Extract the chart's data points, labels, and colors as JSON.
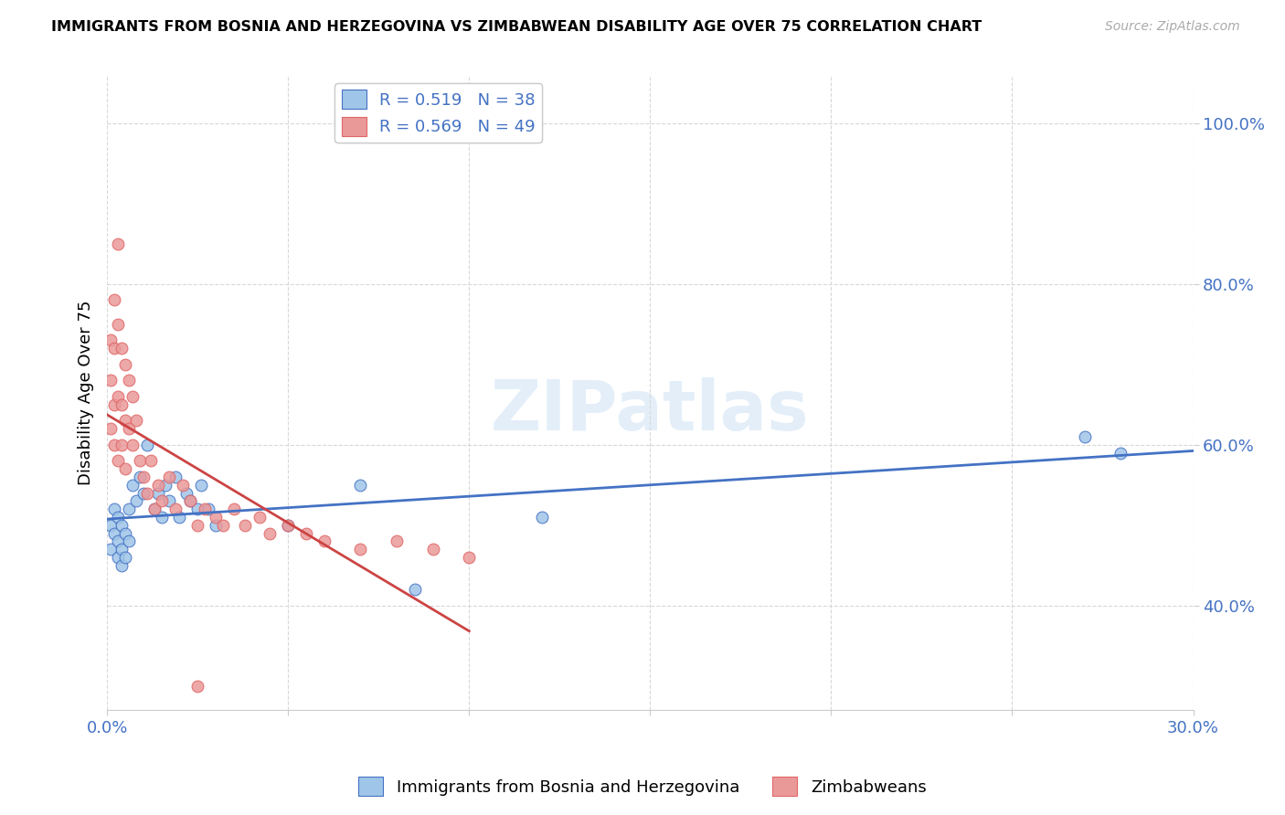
{
  "title": "IMMIGRANTS FROM BOSNIA AND HERZEGOVINA VS ZIMBABWEAN DISABILITY AGE OVER 75 CORRELATION CHART",
  "source": "Source: ZipAtlas.com",
  "ylabel": "Disability Age Over 75",
  "yticks": [
    0.4,
    0.6,
    0.8,
    1.0
  ],
  "ytick_labels": [
    "40.0%",
    "60.0%",
    "80.0%",
    "100.0%"
  ],
  "xtick_labels": [
    "0.0%",
    "",
    "",
    "",
    "",
    "",
    "30.0%"
  ],
  "xticks": [
    0.0,
    0.05,
    0.1,
    0.15,
    0.2,
    0.25,
    0.3
  ],
  "legend_label1": "Immigrants from Bosnia and Herzegovina",
  "legend_label2": "Zimbabweans",
  "R1": 0.519,
  "N1": 38,
  "R2": 0.569,
  "N2": 49,
  "color1": "#9fc5e8",
  "color2": "#ea9999",
  "line_color1": "#4472c4",
  "line_color2": "#cc4444",
  "edge_color2": "#e06666",
  "watermark": "ZIPatlas",
  "xlim": [
    0.0,
    0.3
  ],
  "ylim": [
    0.27,
    1.06
  ],
  "bosnia_x": [
    0.001,
    0.001,
    0.002,
    0.002,
    0.003,
    0.003,
    0.003,
    0.004,
    0.004,
    0.004,
    0.005,
    0.005,
    0.006,
    0.006,
    0.007,
    0.008,
    0.009,
    0.01,
    0.011,
    0.013,
    0.014,
    0.015,
    0.016,
    0.017,
    0.019,
    0.02,
    0.022,
    0.023,
    0.025,
    0.026,
    0.028,
    0.03,
    0.05,
    0.07,
    0.085,
    0.12,
    0.27,
    0.28
  ],
  "bosnia_y": [
    0.47,
    0.5,
    0.49,
    0.52,
    0.46,
    0.48,
    0.51,
    0.45,
    0.47,
    0.5,
    0.49,
    0.46,
    0.48,
    0.52,
    0.55,
    0.53,
    0.56,
    0.54,
    0.6,
    0.52,
    0.54,
    0.51,
    0.55,
    0.53,
    0.56,
    0.51,
    0.54,
    0.53,
    0.52,
    0.55,
    0.52,
    0.5,
    0.5,
    0.55,
    0.42,
    0.51,
    0.61,
    0.59
  ],
  "zimbabwe_x": [
    0.001,
    0.001,
    0.001,
    0.002,
    0.002,
    0.002,
    0.002,
    0.003,
    0.003,
    0.003,
    0.003,
    0.004,
    0.004,
    0.004,
    0.005,
    0.005,
    0.005,
    0.006,
    0.006,
    0.007,
    0.007,
    0.008,
    0.009,
    0.01,
    0.011,
    0.012,
    0.013,
    0.014,
    0.015,
    0.017,
    0.019,
    0.021,
    0.023,
    0.025,
    0.027,
    0.03,
    0.032,
    0.035,
    0.038,
    0.042,
    0.045,
    0.05,
    0.055,
    0.06,
    0.07,
    0.08,
    0.09,
    0.1,
    0.025
  ],
  "zimbabwe_y": [
    0.73,
    0.68,
    0.62,
    0.78,
    0.72,
    0.65,
    0.6,
    0.85,
    0.75,
    0.66,
    0.58,
    0.72,
    0.65,
    0.6,
    0.7,
    0.63,
    0.57,
    0.68,
    0.62,
    0.66,
    0.6,
    0.63,
    0.58,
    0.56,
    0.54,
    0.58,
    0.52,
    0.55,
    0.53,
    0.56,
    0.52,
    0.55,
    0.53,
    0.5,
    0.52,
    0.51,
    0.5,
    0.52,
    0.5,
    0.51,
    0.49,
    0.5,
    0.49,
    0.48,
    0.47,
    0.48,
    0.47,
    0.46,
    0.3
  ]
}
